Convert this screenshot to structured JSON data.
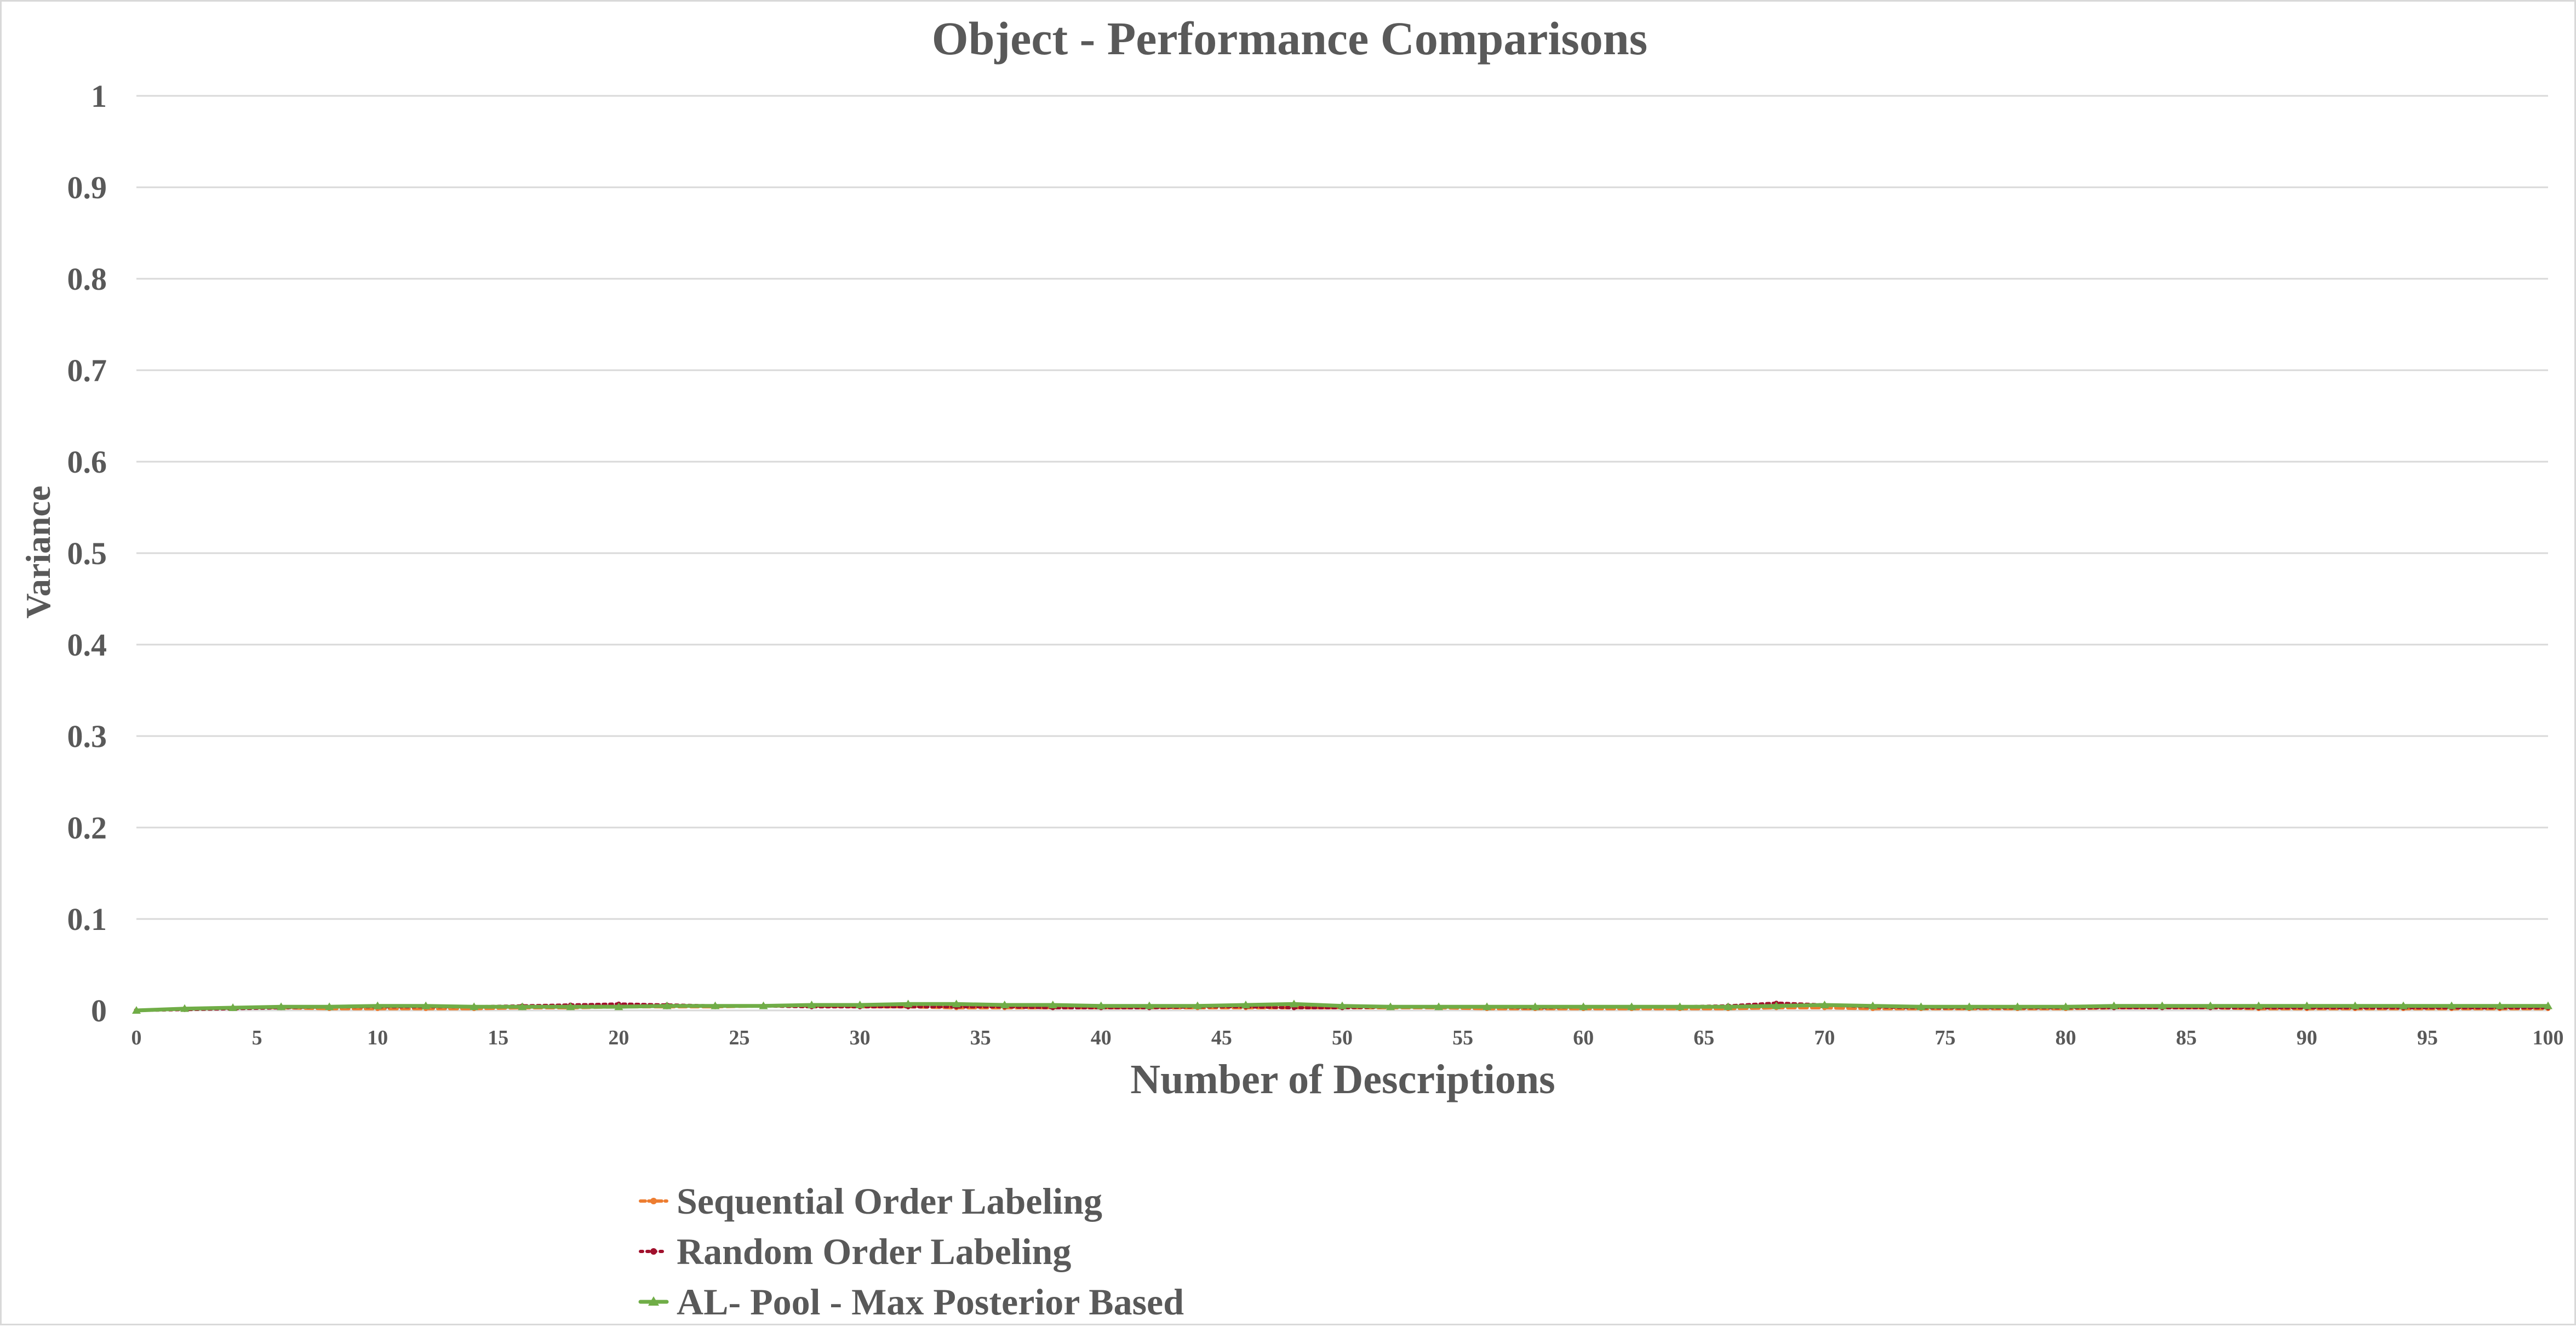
{
  "colors": {
    "grid": "#d9d9d9",
    "text": "#595959",
    "background": "#ffffff"
  },
  "chart_data": {
    "type": "line",
    "title": "Object - Performance Comparisons",
    "xlabel": "Number of Descriptions",
    "ylabel": "Variance",
    "xlim": [
      0,
      100
    ],
    "ylim": [
      0,
      1
    ],
    "x_ticks": [
      0,
      5,
      10,
      15,
      20,
      25,
      30,
      35,
      40,
      45,
      50,
      55,
      60,
      65,
      70,
      75,
      80,
      85,
      90,
      95,
      100
    ],
    "y_ticks": [
      0,
      0.1,
      0.2,
      0.3,
      0.4,
      0.5,
      0.6,
      0.7,
      0.8,
      0.9,
      1
    ],
    "grid": true,
    "legend_position": "bottom",
    "series": [
      {
        "name": "Sequential Order Labeling",
        "color": "#ed7d31",
        "style": "dashed",
        "marker": "circle",
        "x": [
          0,
          2,
          4,
          6,
          8,
          10,
          12,
          14,
          16,
          18,
          20,
          22,
          24,
          26,
          28,
          30,
          32,
          34,
          36,
          38,
          40,
          42,
          44,
          46,
          48,
          50,
          52,
          54,
          56,
          58,
          60,
          62,
          64,
          66,
          68,
          70,
          72,
          74,
          76,
          78,
          80,
          82,
          84,
          86,
          88,
          90,
          92,
          94,
          96,
          98,
          100
        ],
        "values": [
          0.0,
          0.002,
          0.003,
          0.003,
          0.002,
          0.002,
          0.002,
          0.002,
          0.003,
          0.003,
          0.004,
          0.004,
          0.004,
          0.005,
          0.005,
          0.004,
          0.004,
          0.003,
          0.003,
          0.003,
          0.003,
          0.003,
          0.003,
          0.003,
          0.003,
          0.003,
          0.003,
          0.003,
          0.002,
          0.002,
          0.002,
          0.002,
          0.002,
          0.002,
          0.003,
          0.003,
          0.002,
          0.002,
          0.002,
          0.002,
          0.002,
          0.003,
          0.003,
          0.003,
          0.002,
          0.002,
          0.002,
          0.002,
          0.002,
          0.002,
          0.002
        ]
      },
      {
        "name": "Random Order Labeling",
        "color": "#a0102c",
        "style": "dotted",
        "marker": "circle",
        "x": [
          0,
          2,
          4,
          6,
          8,
          10,
          12,
          14,
          16,
          18,
          20,
          22,
          24,
          26,
          28,
          30,
          32,
          34,
          36,
          38,
          40,
          42,
          44,
          46,
          48,
          50,
          52,
          54,
          56,
          58,
          60,
          62,
          64,
          66,
          68,
          70,
          72,
          74,
          76,
          78,
          80,
          82,
          84,
          86,
          88,
          90,
          92,
          94,
          96,
          98,
          100
        ],
        "values": [
          0.0,
          0.001,
          0.002,
          0.003,
          0.004,
          0.004,
          0.004,
          0.004,
          0.005,
          0.006,
          0.007,
          0.006,
          0.005,
          0.005,
          0.004,
          0.004,
          0.004,
          0.004,
          0.004,
          0.003,
          0.003,
          0.003,
          0.004,
          0.004,
          0.003,
          0.003,
          0.004,
          0.004,
          0.004,
          0.003,
          0.004,
          0.004,
          0.004,
          0.005,
          0.008,
          0.006,
          0.004,
          0.003,
          0.003,
          0.003,
          0.003,
          0.003,
          0.003,
          0.003,
          0.003,
          0.003,
          0.003,
          0.003,
          0.003,
          0.003,
          0.003
        ]
      },
      {
        "name": "AL- Pool - Max Posterior Based",
        "color": "#70ad47",
        "style": "solid",
        "marker": "triangle",
        "x": [
          0,
          2,
          4,
          6,
          8,
          10,
          12,
          14,
          16,
          18,
          20,
          22,
          24,
          26,
          28,
          30,
          32,
          34,
          36,
          38,
          40,
          42,
          44,
          46,
          48,
          50,
          52,
          54,
          56,
          58,
          60,
          62,
          64,
          66,
          68,
          70,
          72,
          74,
          76,
          78,
          80,
          82,
          84,
          86,
          88,
          90,
          92,
          94,
          96,
          98,
          100
        ],
        "values": [
          0.0,
          0.002,
          0.003,
          0.004,
          0.004,
          0.005,
          0.005,
          0.004,
          0.004,
          0.004,
          0.004,
          0.005,
          0.005,
          0.005,
          0.006,
          0.006,
          0.007,
          0.007,
          0.006,
          0.006,
          0.005,
          0.005,
          0.005,
          0.006,
          0.007,
          0.005,
          0.004,
          0.004,
          0.004,
          0.004,
          0.004,
          0.004,
          0.004,
          0.004,
          0.005,
          0.006,
          0.005,
          0.004,
          0.004,
          0.004,
          0.004,
          0.005,
          0.005,
          0.005,
          0.005,
          0.005,
          0.005,
          0.005,
          0.005,
          0.005,
          0.005
        ]
      }
    ]
  }
}
